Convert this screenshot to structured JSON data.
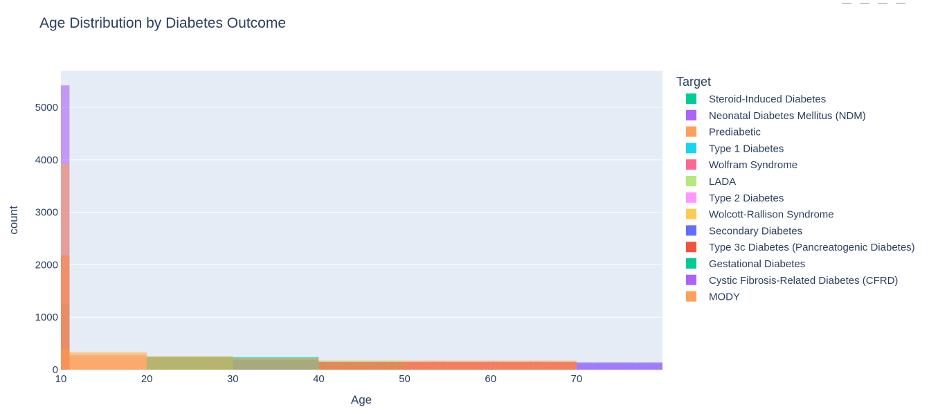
{
  "colors": {
    "plot_bg": "#e5ecf6",
    "grid": "#ffffff",
    "text": "#2a3f5f"
  },
  "chart_data": {
    "type": "histogram",
    "barmode": "overlay",
    "title": "Age Distribution by Diabetes Outcome",
    "xlabel": "Age",
    "ylabel": "count",
    "xlim": [
      10,
      80
    ],
    "ylim": [
      0,
      5700
    ],
    "x_ticks": [
      10,
      20,
      30,
      40,
      50,
      60,
      70
    ],
    "y_ticks": [
      0,
      1000,
      2000,
      3000,
      4000,
      5000
    ],
    "bin_width": 1,
    "grid": true,
    "legend_title": "Target",
    "legend_position": "right",
    "series": [
      {
        "name": "Steroid-Induced Diabetes",
        "color": "#00cc96",
        "segments": [
          {
            "from": 10,
            "to": 11,
            "value": 1250
          },
          {
            "from": 11,
            "to": 20,
            "value": 120
          },
          {
            "from": 20,
            "to": 30,
            "value": 230
          },
          {
            "from": 30,
            "to": 40,
            "value": 200
          }
        ]
      },
      {
        "name": "Neonatal Diabetes Mellitus (NDM)",
        "color": "#ab63fa",
        "segments": [
          {
            "from": 10,
            "to": 11,
            "value": 5420
          }
        ]
      },
      {
        "name": "Prediabetic",
        "color": "#ffa15a",
        "segments": [
          {
            "from": 10,
            "to": 11,
            "value": 380
          },
          {
            "from": 11,
            "to": 20,
            "value": 230
          },
          {
            "from": 20,
            "to": 30,
            "value": 240
          },
          {
            "from": 40,
            "to": 70,
            "value": 175
          }
        ]
      },
      {
        "name": "Type 1 Diabetes",
        "color": "#19d3f3",
        "segments": [
          {
            "from": 10,
            "to": 11,
            "value": 300
          },
          {
            "from": 11,
            "to": 20,
            "value": 250
          }
        ]
      },
      {
        "name": "Wolfram Syndrome",
        "color": "#ff6692",
        "segments": [
          {
            "from": 10,
            "to": 11,
            "value": 200
          },
          {
            "from": 11,
            "to": 20,
            "value": 200
          }
        ]
      },
      {
        "name": "LADA",
        "color": "#b6e880",
        "segments": [
          {
            "from": 20,
            "to": 30,
            "value": 260
          },
          {
            "from": 40,
            "to": 50,
            "value": 170
          }
        ]
      },
      {
        "name": "Type 2 Diabetes",
        "color": "#ff97ff",
        "segments": [
          {
            "from": 10,
            "to": 11,
            "value": 250
          },
          {
            "from": 11,
            "to": 20,
            "value": 320
          }
        ]
      },
      {
        "name": "Wolcott-Rallison Syndrome",
        "color": "#fecb52",
        "segments": [
          {
            "from": 10,
            "to": 11,
            "value": 400
          },
          {
            "from": 11,
            "to": 20,
            "value": 340
          }
        ]
      },
      {
        "name": "Secondary Diabetes",
        "color": "#636efa",
        "segments": [
          {
            "from": 30,
            "to": 40,
            "value": 185
          },
          {
            "from": 70,
            "to": 80,
            "value": 140
          }
        ]
      },
      {
        "name": "Type 3c Diabetes (Pancreatogenic Diabetes)",
        "color": "#ef553b",
        "segments": [
          {
            "from": 10,
            "to": 11,
            "value": 2180
          },
          {
            "from": 40,
            "to": 70,
            "value": 145
          }
        ]
      },
      {
        "name": "Gestational Diabetes",
        "color": "#00cc96",
        "segments": [
          {
            "from": 20,
            "to": 30,
            "value": 240
          },
          {
            "from": 30,
            "to": 40,
            "value": 240
          }
        ]
      },
      {
        "name": "Cystic Fibrosis-Related Diabetes (CFRD)",
        "color": "#ab63fa",
        "segments": [
          {
            "from": 70,
            "to": 80,
            "value": 120
          }
        ]
      },
      {
        "name": "MODY",
        "color": "#ffa15a",
        "segments": [
          {
            "from": 10,
            "to": 11,
            "value": 3920
          },
          {
            "from": 11,
            "to": 20,
            "value": 280
          },
          {
            "from": 20,
            "to": 30,
            "value": 250
          },
          {
            "from": 30,
            "to": 40,
            "value": 220
          }
        ]
      }
    ]
  }
}
